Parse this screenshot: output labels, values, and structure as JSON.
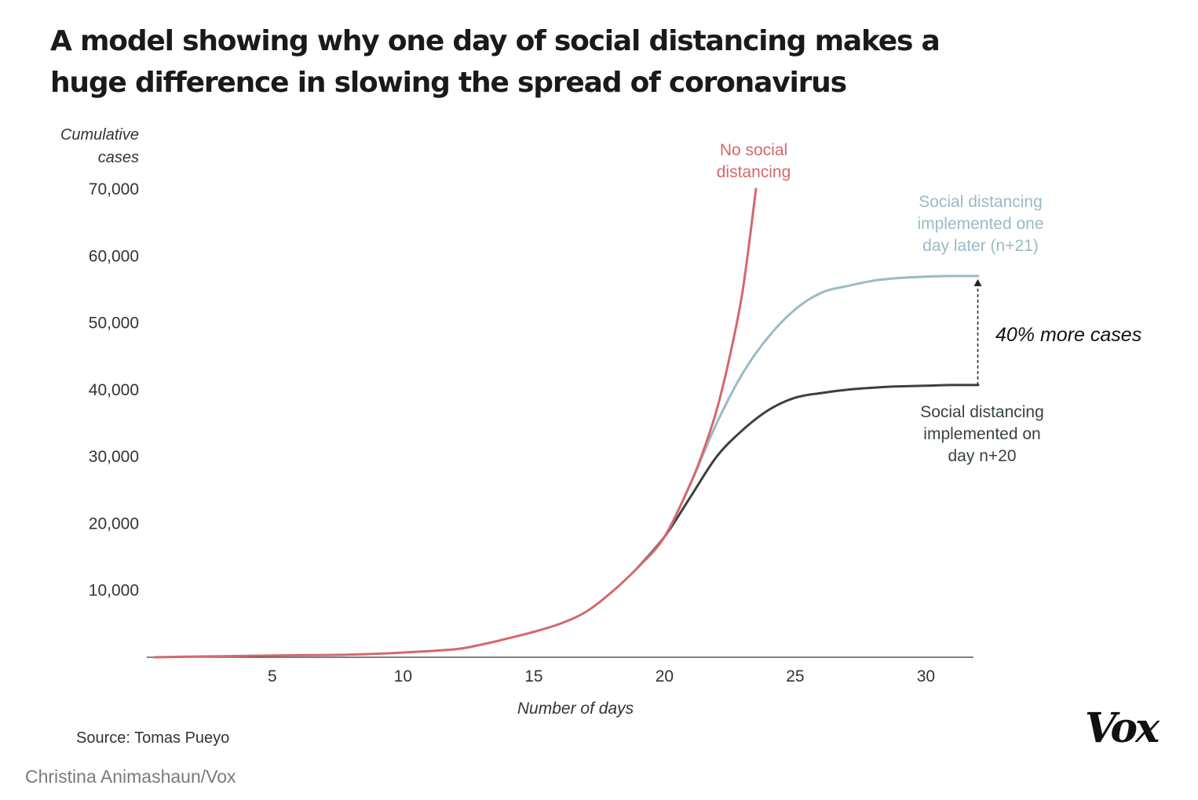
{
  "title_lines": [
    "A model showing why one day of social distancing makes a",
    "huge difference in slowing the spread of coronavirus"
  ],
  "source": "Source: Tomas Pueyo",
  "credit": "Christina Animashaun/Vox",
  "logo_text": "Vox",
  "colors": {
    "no_sd": "#d4686b",
    "sd_n21": "#9bbac5",
    "sd_n20": "#38423f",
    "axis": "#333333",
    "text": "#1a1a1a"
  },
  "chart_data": {
    "type": "line",
    "title": "A model showing why one day of social distancing makes a huge difference in slowing the spread of coronavirus",
    "xlabel": "Number of days",
    "ylabel": "Cumulative cases",
    "ylabel_lines": [
      "Cumulative",
      "cases"
    ],
    "x_ticks": [
      5,
      10,
      15,
      20,
      25,
      30
    ],
    "y_ticks": [
      10000,
      20000,
      30000,
      40000,
      50000,
      60000,
      70000
    ],
    "y_tick_labels": [
      "10,000",
      "20,000",
      "30,000",
      "40,000",
      "50,000",
      "60,000",
      "70,000"
    ],
    "xlim": [
      0.5,
      32
    ],
    "ylim": [
      0,
      70000
    ],
    "grid": false,
    "series": [
      {
        "name": "No social distancing",
        "label_lines": [
          "No social",
          "distancing"
        ],
        "color_key": "no_sd",
        "x": [
          0.5,
          2,
          4,
          6,
          8,
          10,
          12,
          13,
          14,
          15,
          16,
          17,
          18,
          19,
          20,
          21,
          21.5,
          22,
          22.5,
          23,
          23.5
        ],
        "y": [
          0,
          100,
          200,
          300,
          400,
          700,
          1200,
          1900,
          2800,
          3800,
          5000,
          6800,
          9800,
          13500,
          18000,
          26000,
          31000,
          37000,
          45000,
          55000,
          70000
        ]
      },
      {
        "name": "Social distancing implemented one day later (n+21)",
        "label_lines": [
          "Social distancing",
          "implemented one",
          "day later (n+21)"
        ],
        "color_key": "sd_n21",
        "x": [
          19,
          20,
          21,
          22,
          23,
          24,
          25,
          26,
          27,
          28,
          29,
          30,
          31,
          32
        ],
        "y": [
          13500,
          18000,
          26000,
          35000,
          42500,
          48000,
          52000,
          54500,
          55500,
          56300,
          56700,
          56900,
          57000,
          57000
        ]
      },
      {
        "name": "Social distancing implemented on day n+20",
        "label_lines": [
          "Social distancing",
          "implemented on",
          "day n+20"
        ],
        "color_key": "sd_n20",
        "x": [
          19,
          20,
          21,
          22,
          23,
          24,
          25,
          26,
          27,
          28,
          29,
          30,
          31,
          32
        ],
        "y": [
          13500,
          18000,
          24000,
          30000,
          34000,
          37000,
          38800,
          39500,
          40000,
          40300,
          40500,
          40600,
          40700,
          40700
        ]
      }
    ],
    "annotations": [
      {
        "text": "40% more cases",
        "x": 32,
        "y_from": 40700,
        "y_to": 57000
      }
    ]
  }
}
